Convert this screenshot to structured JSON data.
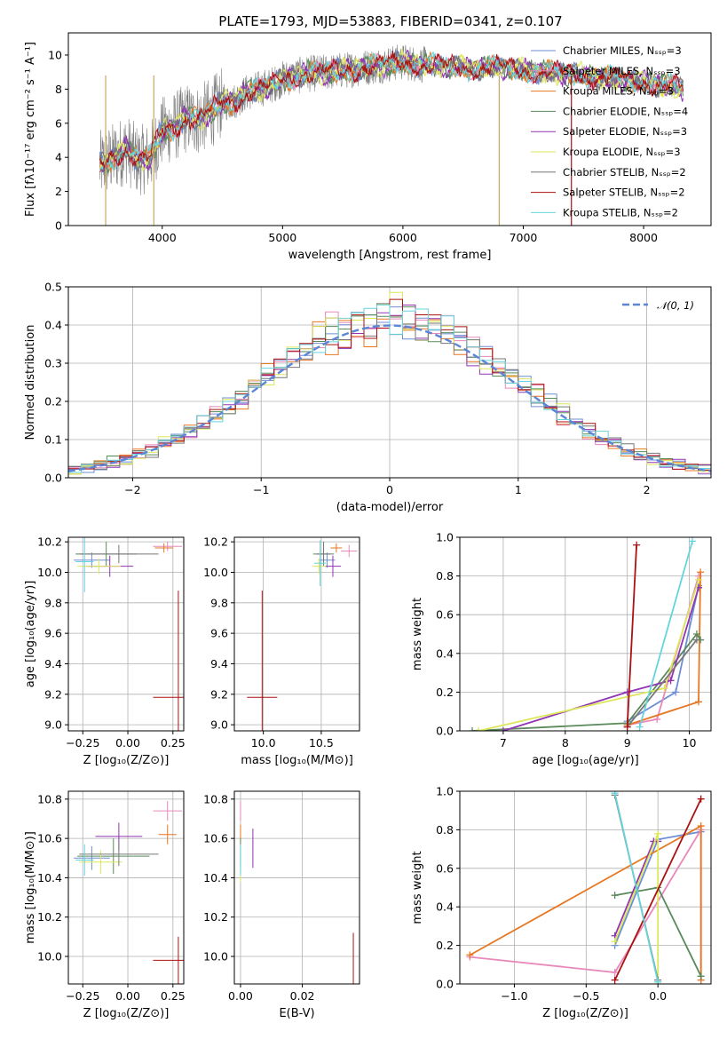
{
  "colors": [
    "#6c8ed6",
    "#e888bb",
    "#e77722",
    "#5a8a5a",
    "#9133b3",
    "#dde75a",
    "#777777",
    "#aa1111",
    "#66d4dd"
  ],
  "chart_data": [
    {
      "id": "spectrum",
      "type": "line",
      "title": "PLATE=1793, MJD=53883, FIBERID=0341, z=0.107",
      "xlabel": "wavelength [Angstrom, rest frame]",
      "ylabel": "Flux [fλ10⁻¹⁷ erg cm⁻² s⁻¹ A⁻¹]",
      "xlim": [
        3220,
        8560
      ],
      "ylim": [
        0,
        11.3
      ],
      "xticks": [
        4000,
        5000,
        6000,
        7000,
        8000
      ],
      "xtick_labels": [
        "4000",
        "5000",
        "6000",
        "7000",
        "8000"
      ],
      "yticks": [
        0,
        2,
        4,
        6,
        8,
        10
      ],
      "ytick_labels": [
        "0",
        "2",
        "4",
        "6",
        "8",
        "10"
      ],
      "legend": "top-right",
      "grid": false,
      "continuum": {
        "x": [
          3480,
          3600,
          3700,
          3800,
          3900,
          4000,
          4100,
          4200,
          4300,
          4400,
          4500,
          4600,
          4700,
          4800,
          4900,
          5000,
          5200,
          5400,
          5600,
          5800,
          6000,
          6200,
          6400,
          6600,
          6800,
          7000,
          7200,
          7400,
          7600,
          7800,
          8000,
          8200,
          8330
        ],
        "y": [
          3.5,
          4.0,
          4.5,
          3.8,
          4.0,
          5.5,
          5.8,
          6.3,
          6.2,
          6.6,
          7.2,
          7.3,
          7.8,
          8.0,
          8.2,
          8.6,
          8.9,
          9.0,
          9.2,
          9.4,
          9.6,
          9.4,
          9.3,
          9.2,
          9.3,
          9.1,
          9.0,
          8.9,
          8.7,
          8.6,
          8.4,
          8.2,
          8.0
        ]
      },
      "series": [
        {
          "name": "Chabrier MILES, Nₛₛₚ=3"
        },
        {
          "name": "Salpeter MILES, Nₛₛₚ=3"
        },
        {
          "name": "Kroupa MILES, Nₛₛₚ=3"
        },
        {
          "name": "Chabrier ELODIE, Nₛₛₚ=4"
        },
        {
          "name": "Salpeter ELODIE, Nₛₛₚ=3"
        },
        {
          "name": "Kroupa ELODIE, Nₛₛₚ=3"
        },
        {
          "name": "Chabrier STELIB, Nₛₛₚ=2"
        },
        {
          "name": "Salpeter STELIB, Nₛₛₚ=2"
        },
        {
          "name": "Kroupa STELIB, Nₛₛₚ=2"
        }
      ]
    },
    {
      "id": "residuals",
      "type": "histogram",
      "xlabel": "(data-model)/error",
      "ylabel": "Normed distribution",
      "xlim": [
        -2.5,
        2.5
      ],
      "ylim": [
        0,
        0.5
      ],
      "xticks": [
        -2,
        -1,
        0,
        1,
        2
      ],
      "xtick_labels": [
        "−2",
        "−1",
        "0",
        "1",
        "2"
      ],
      "yticks": [
        0,
        0.1,
        0.2,
        0.3,
        0.4,
        0.5
      ],
      "ytick_labels": [
        "0.0",
        "0.1",
        "0.2",
        "0.3",
        "0.4",
        "0.5"
      ],
      "bin_width": 0.1,
      "grid": true,
      "legend": "top-right",
      "normal_label": "𝒩(0, 1)",
      "normal_mu": 0,
      "normal_sigma": 1
    },
    {
      "id": "z-age",
      "type": "errorbar",
      "xlabel": "Z [log₁₀(Z/Z⊙)]",
      "ylabel": "age  [log₁₀(age/yr)]",
      "xlim": [
        -0.33,
        0.31
      ],
      "ylim": [
        8.96,
        10.23
      ],
      "xticks": [
        -0.25,
        0,
        0.25
      ],
      "xtick_labels": [
        "−0.25",
        "0.00",
        "0.25"
      ],
      "yticks": [
        9.0,
        9.2,
        9.4,
        9.6,
        9.8,
        10.0,
        10.2
      ],
      "ytick_labels": [
        "9.0",
        "9.2",
        "9.4",
        "9.6",
        "9.8",
        "10.0",
        "10.2"
      ],
      "grid": true,
      "points": [
        {
          "s": 0,
          "x": -0.2,
          "y": 10.08,
          "xe": 0.1,
          "ye": 0.05
        },
        {
          "s": 1,
          "x": 0.22,
          "y": 10.17,
          "xe": 0.08,
          "ye": 0.03
        },
        {
          "s": 2,
          "x": 0.2,
          "y": 10.16,
          "xe": 0.05,
          "ye": 0.03
        },
        {
          "s": 3,
          "x": -0.12,
          "y": 10.12,
          "xe": 0.17,
          "ye": 0.08
        },
        {
          "s": 4,
          "x": -0.1,
          "y": 10.04,
          "xe": 0.13,
          "ye": 0.07
        },
        {
          "s": 5,
          "x": -0.16,
          "y": 10.04,
          "xe": 0.12,
          "ye": 0.05
        },
        {
          "s": 6,
          "x": -0.05,
          "y": 10.12,
          "xe": 0.22,
          "ye": 0.06
        },
        {
          "s": 7,
          "x": 0.28,
          "y": 9.18,
          "xe": 0.14,
          "ye": 0.7
        },
        {
          "s": 8,
          "x": -0.24,
          "y": 10.07,
          "xe": 0.05,
          "ye": 0.2
        }
      ]
    },
    {
      "id": "mass-age",
      "type": "errorbar",
      "xlabel": "mass [log₁₀(M/M⊙)]",
      "ylabel": "",
      "xlim": [
        9.75,
        10.83
      ],
      "ylim": [
        8.96,
        10.23
      ],
      "xticks": [
        10.0,
        10.5
      ],
      "xtick_labels": [
        "10.0",
        "10.5"
      ],
      "yticks": [
        9.0,
        9.2,
        9.4,
        9.6,
        9.8,
        10.0,
        10.2
      ],
      "ytick_labels": [
        "9.0",
        "9.2",
        "9.4",
        "9.6",
        "9.8",
        "10.0",
        "10.2"
      ],
      "grid": true,
      "points": [
        {
          "s": 0,
          "x": 10.55,
          "y": 10.08,
          "xe": 0.07,
          "ye": 0.05
        },
        {
          "s": 1,
          "x": 10.74,
          "y": 10.14,
          "xe": 0.07,
          "ye": 0.04
        },
        {
          "s": 2,
          "x": 10.63,
          "y": 10.16,
          "xe": 0.05,
          "ye": 0.03
        },
        {
          "s": 3,
          "x": 10.52,
          "y": 10.12,
          "xe": 0.09,
          "ye": 0.08
        },
        {
          "s": 4,
          "x": 10.6,
          "y": 10.04,
          "xe": 0.07,
          "ye": 0.07
        },
        {
          "s": 5,
          "x": 10.48,
          "y": 10.04,
          "xe": 0.06,
          "ye": 0.05
        },
        {
          "s": 6,
          "x": 10.52,
          "y": 10.12,
          "xe": 0.06,
          "ye": 0.06
        },
        {
          "s": 7,
          "x": 9.99,
          "y": 9.18,
          "xe": 0.13,
          "ye": 0.7
        },
        {
          "s": 8,
          "x": 10.49,
          "y": 10.06,
          "xe": 0.05,
          "ye": 0.15
        }
      ]
    },
    {
      "id": "age-weight",
      "type": "line",
      "xlabel": "age  [log₁₀(age/yr)]",
      "ylabel": "mass weight",
      "xlim": [
        6.3,
        10.35
      ],
      "ylim": [
        0,
        1
      ],
      "xticks": [
        7,
        8,
        9,
        10
      ],
      "xtick_labels": [
        "7",
        "8",
        "9",
        "10"
      ],
      "yticks": [
        0,
        0.2,
        0.4,
        0.6,
        0.8,
        1.0
      ],
      "ytick_labels": [
        "0.0",
        "0.2",
        "0.4",
        "0.6",
        "0.8",
        "1.0"
      ],
      "grid": true,
      "series": [
        {
          "s": 0,
          "x": [
            9.0,
            9.78,
            10.15
          ],
          "y": [
            0.05,
            0.2,
            0.75
          ]
        },
        {
          "s": 1,
          "x": [
            9.0,
            9.48,
            10.15
          ],
          "y": [
            0.03,
            0.06,
            0.8
          ]
        },
        {
          "s": 2,
          "x": [
            9.0,
            10.15,
            10.18
          ],
          "y": [
            0.03,
            0.15,
            0.82
          ]
        },
        {
          "s": 3,
          "x": [
            6.5,
            9.0,
            10.12,
            10.18
          ],
          "y": [
            0.0,
            0.04,
            0.5,
            0.47
          ]
        },
        {
          "s": 4,
          "x": [
            7.0,
            9.0,
            9.7,
            10.15
          ],
          "y": [
            0.0,
            0.2,
            0.26,
            0.74
          ]
        },
        {
          "s": 5,
          "x": [
            6.6,
            9.6,
            10.15
          ],
          "y": [
            0.0,
            0.22,
            0.78
          ]
        },
        {
          "s": 6,
          "x": [
            9.0,
            10.12
          ],
          "y": [
            0.02,
            0.47
          ]
        },
        {
          "s": 7,
          "x": [
            9.0,
            9.15
          ],
          "y": [
            0.02,
            0.96
          ]
        },
        {
          "s": 8,
          "x": [
            9.2,
            10.05
          ],
          "y": [
            0.02,
            0.98
          ]
        }
      ]
    },
    {
      "id": "z-mass",
      "type": "errorbar",
      "xlabel": "Z [log₁₀(Z/Z⊙)]",
      "ylabel": "mass [log₁₀(M/M⊙)]",
      "xlim": [
        -0.33,
        0.31
      ],
      "ylim": [
        9.86,
        10.84
      ],
      "xticks": [
        -0.25,
        0,
        0.25
      ],
      "xtick_labels": [
        "−0.25",
        "0.00",
        "0.25"
      ],
      "yticks": [
        10.0,
        10.2,
        10.4,
        10.6,
        10.8
      ],
      "ytick_labels": [
        "10.0",
        "10.2",
        "10.4",
        "10.6",
        "10.8"
      ],
      "grid": true,
      "points": [
        {
          "s": 0,
          "x": -0.2,
          "y": 10.5,
          "xe": 0.1,
          "ye": 0.06
        },
        {
          "s": 1,
          "x": 0.22,
          "y": 10.74,
          "xe": 0.08,
          "ye": 0.05
        },
        {
          "s": 2,
          "x": 0.22,
          "y": 10.62,
          "xe": 0.05,
          "ye": 0.05
        },
        {
          "s": 3,
          "x": -0.08,
          "y": 10.51,
          "xe": 0.2,
          "ye": 0.09
        },
        {
          "s": 4,
          "x": -0.05,
          "y": 10.61,
          "xe": 0.13,
          "ye": 0.07
        },
        {
          "s": 5,
          "x": -0.15,
          "y": 10.48,
          "xe": 0.12,
          "ye": 0.06
        },
        {
          "s": 6,
          "x": -0.05,
          "y": 10.52,
          "xe": 0.22,
          "ye": 0.06
        },
        {
          "s": 7,
          "x": 0.28,
          "y": 9.98,
          "xe": 0.14,
          "ye": 0.12
        },
        {
          "s": 8,
          "x": -0.24,
          "y": 10.49,
          "xe": 0.05,
          "ye": 0.08
        }
      ]
    },
    {
      "id": "ebv-mass",
      "type": "errorbar",
      "xlabel": "E(B-V)",
      "ylabel": "",
      "xlim": [
        -0.002,
        0.0385
      ],
      "ylim": [
        9.86,
        10.84
      ],
      "xticks": [
        0,
        0.02
      ],
      "xtick_labels": [
        "0.00",
        "0.02"
      ],
      "yticks": [
        10.0,
        10.2,
        10.4,
        10.6,
        10.8
      ],
      "ytick_labels": [
        "10.0",
        "10.2",
        "10.4",
        "10.6",
        "10.8"
      ],
      "grid": true,
      "points": [
        {
          "s": 0,
          "x": 0.0,
          "y": 10.5,
          "xe": 0,
          "ye": 0.06
        },
        {
          "s": 1,
          "x": 0.0,
          "y": 10.74,
          "xe": 0,
          "ye": 0.05
        },
        {
          "s": 2,
          "x": 0.0,
          "y": 10.62,
          "xe": 0,
          "ye": 0.05
        },
        {
          "s": 3,
          "x": 0.0,
          "y": 10.51,
          "xe": 0,
          "ye": 0.09
        },
        {
          "s": 4,
          "x": 0.004,
          "y": 10.55,
          "xe": 0,
          "ye": 0.1
        },
        {
          "s": 5,
          "x": 0.0,
          "y": 10.48,
          "xe": 0,
          "ye": 0.1
        },
        {
          "s": 6,
          "x": 0.0,
          "y": 10.52,
          "xe": 0,
          "ye": 0.06
        },
        {
          "s": 7,
          "x": 0.0365,
          "y": 9.98,
          "xe": 0,
          "ye": 0.14
        },
        {
          "s": 8,
          "x": 0.0,
          "y": 10.49,
          "xe": 0,
          "ye": 0.08
        }
      ]
    },
    {
      "id": "z-weight",
      "type": "line",
      "xlabel": "Z [log₁₀(Z/Z⊙)]",
      "ylabel": "mass weight",
      "xlim": [
        -1.38,
        0.37
      ],
      "ylim": [
        0,
        1
      ],
      "xticks": [
        -1.0,
        -0.5,
        0.0
      ],
      "xtick_labels": [
        "−1.0",
        "−0.5",
        "0.0"
      ],
      "yticks": [
        0,
        0.2,
        0.4,
        0.6,
        0.8,
        1.0
      ],
      "ytick_labels": [
        "0.0",
        "0.2",
        "0.4",
        "0.6",
        "0.8",
        "1.0"
      ],
      "grid": true,
      "series": [
        {
          "s": 0,
          "x": [
            -0.3,
            0.0,
            0.3
          ],
          "y": [
            0.2,
            0.75,
            0.79
          ]
        },
        {
          "s": 1,
          "x": [
            -1.31,
            -0.3,
            0.3,
            0.3
          ],
          "y": [
            0.14,
            0.06,
            0.8,
            0.02
          ]
        },
        {
          "s": 2,
          "x": [
            -1.31,
            0.3,
            0.3
          ],
          "y": [
            0.15,
            0.82,
            0.02
          ]
        },
        {
          "s": 3,
          "x": [
            -0.3,
            0.0,
            0.3
          ],
          "y": [
            0.46,
            0.5,
            0.04
          ]
        },
        {
          "s": 4,
          "x": [
            -0.3,
            -0.03,
            0.0
          ],
          "y": [
            0.25,
            0.74,
            0.74
          ]
        },
        {
          "s": 5,
          "x": [
            -0.3,
            0.0,
            0.0
          ],
          "y": [
            0.22,
            0.78,
            0.0
          ]
        },
        {
          "s": 6,
          "x": [
            -0.3,
            0.0
          ],
          "y": [
            0.98,
            0.02
          ]
        },
        {
          "s": 7,
          "x": [
            -0.3,
            0.3
          ],
          "y": [
            0.02,
            0.96
          ]
        },
        {
          "s": 8,
          "x": [
            -0.3,
            0.0
          ],
          "y": [
            0.99,
            0.01
          ]
        }
      ]
    }
  ]
}
